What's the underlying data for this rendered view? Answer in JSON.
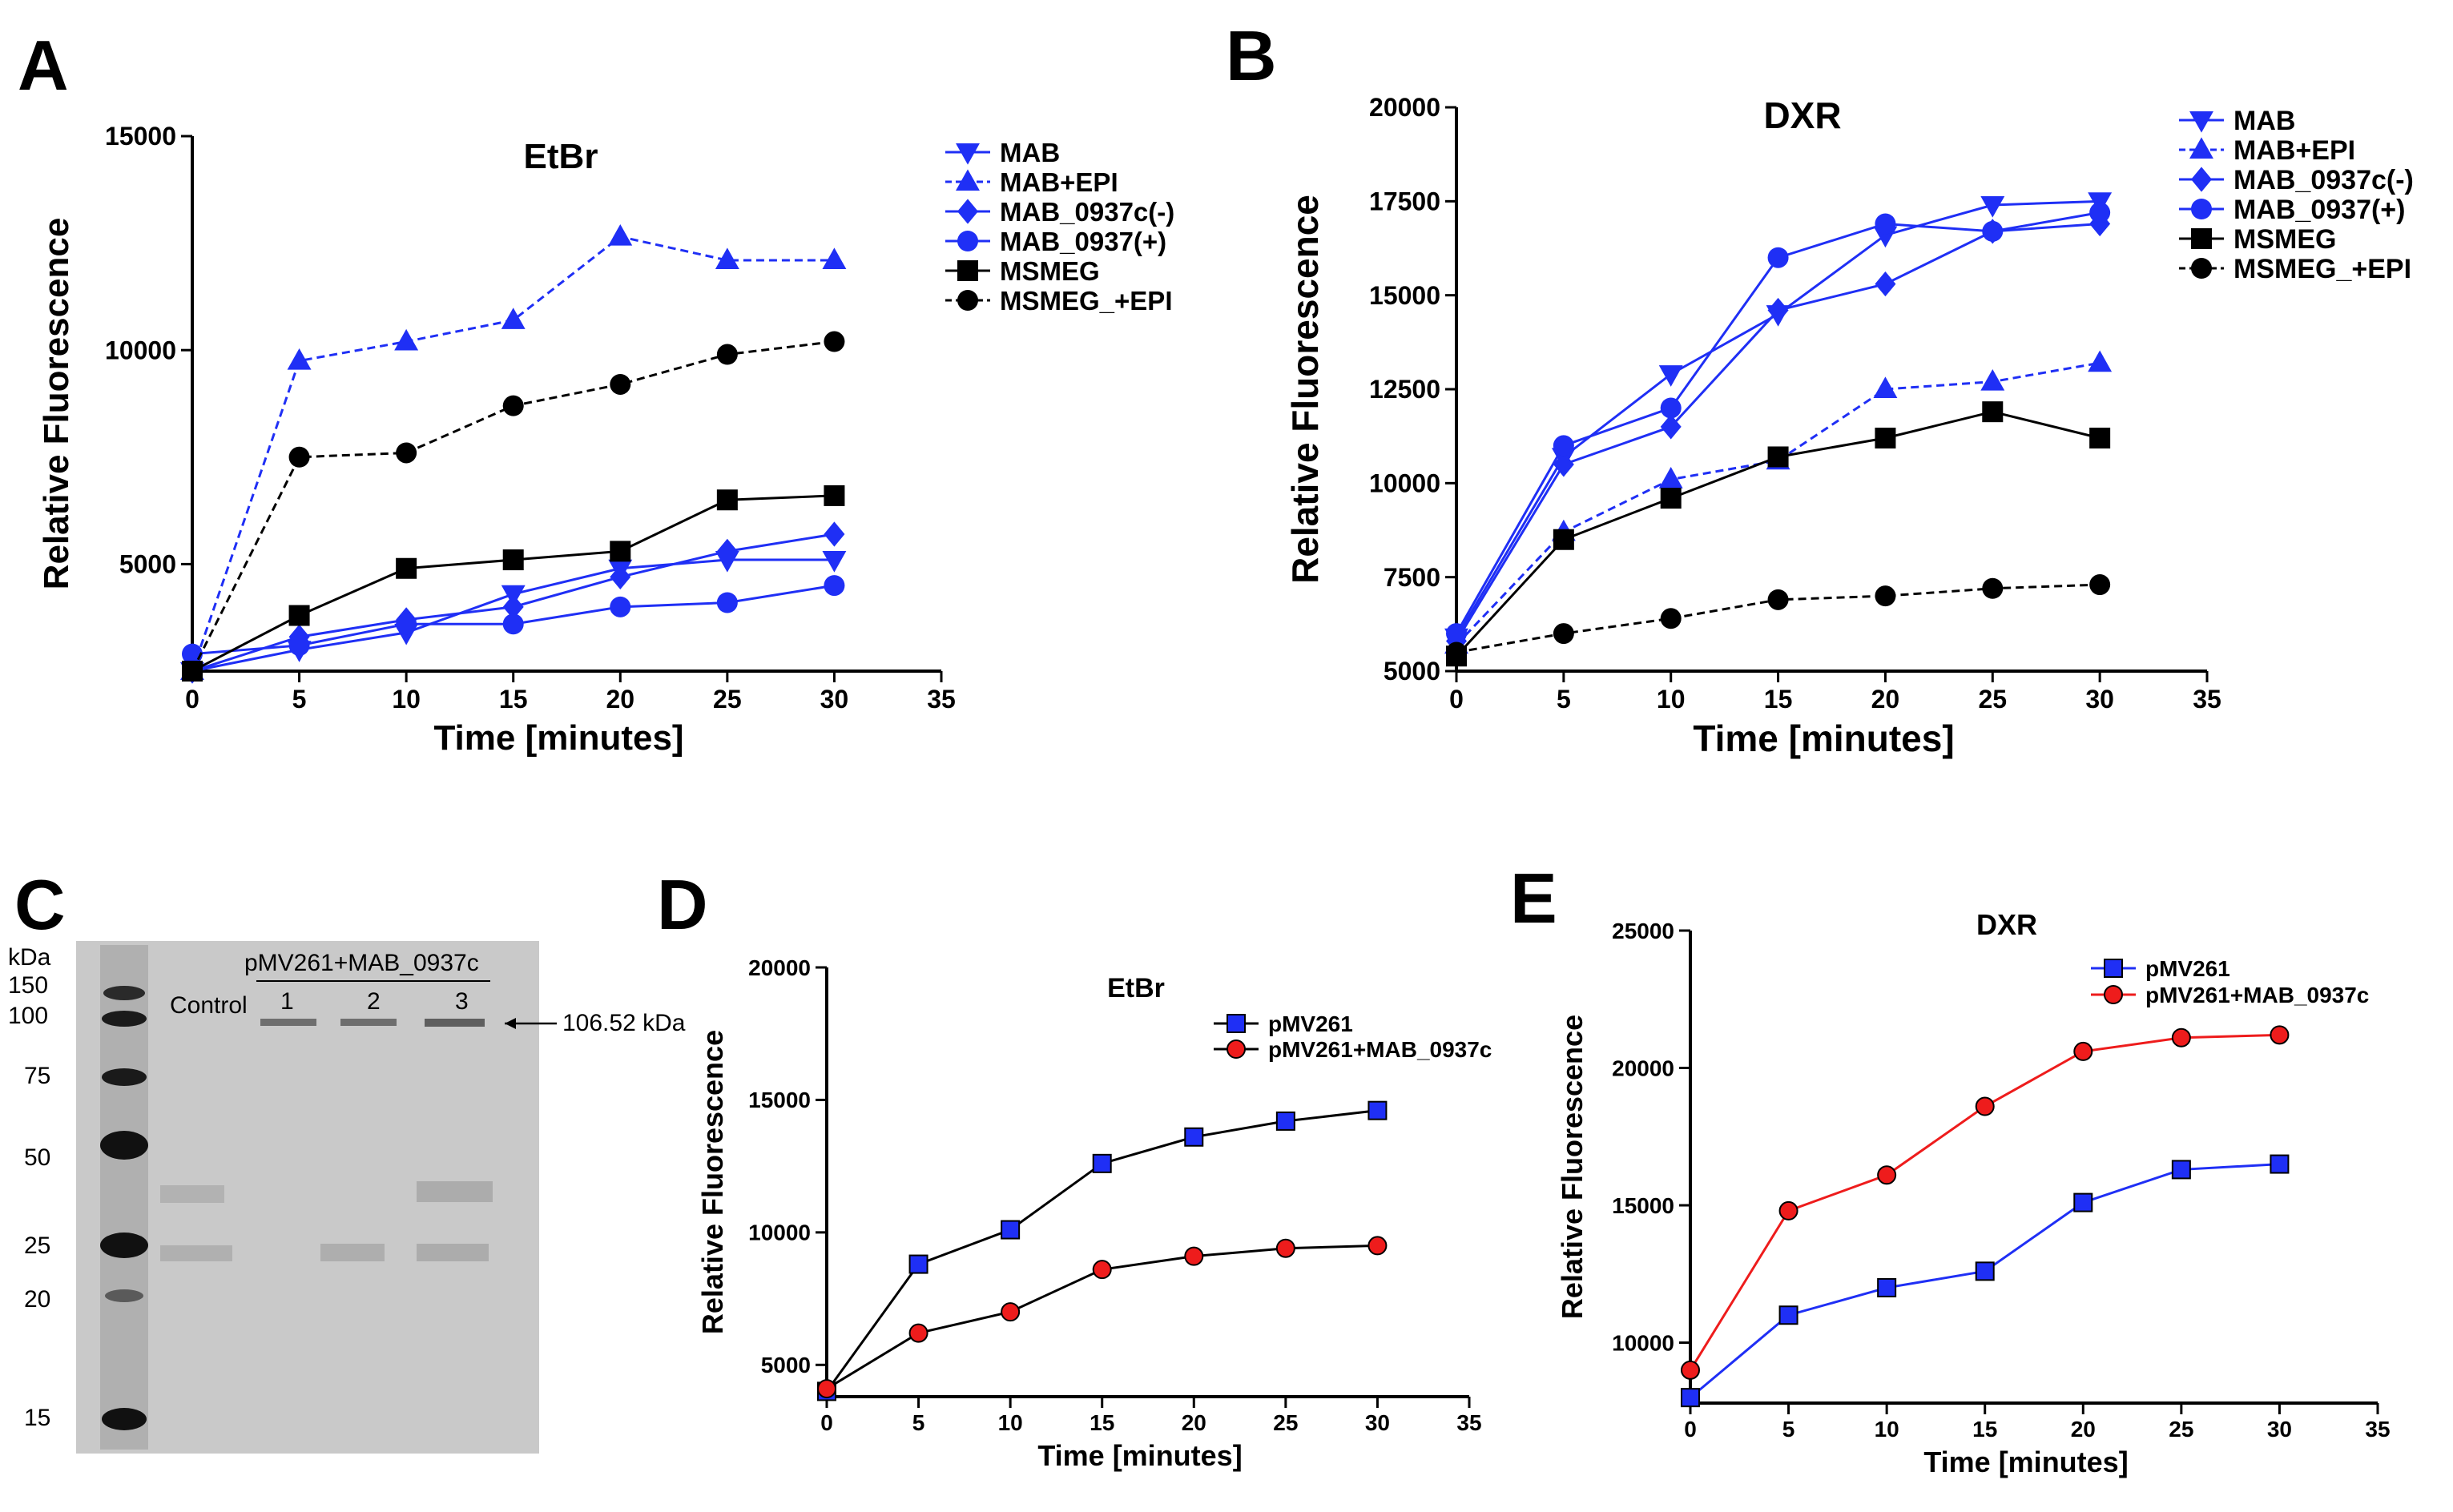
{
  "panel_labels": [
    "A",
    "B",
    "C",
    "D",
    "E"
  ],
  "blot": {
    "kda_label": "kDa",
    "ladder_markers": [
      "150",
      "100",
      "75",
      "50",
      "25",
      "20",
      "15"
    ],
    "construct_label": "pMV261+MAB_0937c",
    "lane_control": "Control",
    "lanes": [
      "1",
      "2",
      "3"
    ],
    "band_annotation": "106.52 kDa"
  },
  "chart_data": [
    {
      "type": "line",
      "panel": "A",
      "title": "EtBr",
      "xlabel": "Time [minutes]",
      "ylabel": "Relative Fluorescence",
      "xlim": [
        0,
        35
      ],
      "ylim": [
        2500,
        15000
      ],
      "xticks": [
        0,
        5,
        10,
        15,
        20,
        25,
        30,
        35
      ],
      "yticks": [
        5000,
        10000,
        15000
      ],
      "x": [
        0,
        5,
        10,
        15,
        20,
        25,
        30
      ],
      "legend_position": "top-right",
      "series": [
        {
          "name": "MAB",
          "marker": "triangle-down",
          "color": "#1f2ff5",
          "dashed": false,
          "values": [
            2500,
            3000,
            3400,
            4300,
            4900,
            5100,
            5100
          ]
        },
        {
          "name": "MAB+EPI",
          "marker": "triangle-up",
          "color": "#1f2ff5",
          "dashed": true,
          "values": [
            2500,
            9750,
            10200,
            10700,
            12650,
            12100,
            12100
          ]
        },
        {
          "name": "MAB_0937c(-)",
          "marker": "diamond",
          "color": "#1f2ff5",
          "dashed": false,
          "values": [
            2500,
            3300,
            3700,
            4000,
            4700,
            5300,
            5700
          ]
        },
        {
          "name": "MAB_0937(+)",
          "marker": "circle",
          "color": "#1f2ff5",
          "dashed": false,
          "values": [
            2900,
            3100,
            3600,
            3600,
            4000,
            4100,
            4500
          ]
        },
        {
          "name": "MSMEG",
          "marker": "square",
          "color": "#000000",
          "dashed": false,
          "values": [
            2500,
            3800,
            4900,
            5100,
            5300,
            6500,
            6600
          ]
        },
        {
          "name": "MSMEG_+EPI",
          "marker": "circle",
          "color": "#000000",
          "dashed": true,
          "values": [
            2500,
            7500,
            7600,
            8700,
            9200,
            9900,
            10200
          ]
        }
      ]
    },
    {
      "type": "line",
      "panel": "B",
      "title": "DXR",
      "xlabel": "Time [minutes]",
      "ylabel": "Relative Fluorescence",
      "xlim": [
        0,
        35
      ],
      "ylim": [
        5000,
        20000
      ],
      "xticks": [
        0,
        5,
        10,
        15,
        20,
        25,
        30,
        35
      ],
      "yticks": [
        5000,
        7500,
        10000,
        12500,
        15000,
        17500,
        20000
      ],
      "x": [
        0,
        5,
        10,
        15,
        20,
        25,
        30
      ],
      "legend_position": "top-right",
      "series": [
        {
          "name": "MAB",
          "marker": "triangle-down",
          "color": "#1f2ff5",
          "dashed": false,
          "values": [
            5900,
            10700,
            12900,
            14500,
            16600,
            17400,
            17500
          ]
        },
        {
          "name": "MAB+EPI",
          "marker": "triangle-up",
          "color": "#1f2ff5",
          "dashed": true,
          "values": [
            5700,
            8700,
            10100,
            10600,
            12500,
            12700,
            13200
          ]
        },
        {
          "name": "MAB_0937c(-)",
          "marker": "diamond",
          "color": "#1f2ff5",
          "dashed": false,
          "values": [
            5800,
            10500,
            11500,
            14600,
            15300,
            16700,
            16900
          ]
        },
        {
          "name": "MAB_0937(+)",
          "marker": "circle",
          "color": "#1f2ff5",
          "dashed": false,
          "values": [
            6000,
            11000,
            12000,
            16000,
            16900,
            16700,
            17200
          ]
        },
        {
          "name": "MSMEG",
          "marker": "square",
          "color": "#000000",
          "dashed": false,
          "values": [
            5400,
            8500,
            9600,
            10700,
            11200,
            11900,
            11200
          ]
        },
        {
          "name": "MSMEG_+EPI",
          "marker": "circle",
          "color": "#000000",
          "dashed": true,
          "values": [
            5500,
            6000,
            6400,
            6900,
            7000,
            7200,
            7300
          ]
        }
      ]
    },
    {
      "type": "line",
      "panel": "D",
      "title": "EtBr",
      "xlabel": "Time [minutes]",
      "ylabel": "Relative Fluorescence",
      "xlim": [
        0,
        35
      ],
      "ylim": [
        3800,
        20000
      ],
      "xticks": [
        0,
        5,
        10,
        15,
        20,
        25,
        30,
        35
      ],
      "yticks": [
        5000,
        10000,
        15000,
        20000
      ],
      "x": [
        0,
        5,
        10,
        15,
        20,
        25,
        30
      ],
      "legend_position": "center-right",
      "series": [
        {
          "name": "pMV261",
          "marker": "square",
          "color": "#1f2ff5",
          "line_color": "#000000",
          "dashed": false,
          "values": [
            4000,
            8800,
            10100,
            12600,
            13600,
            14200,
            14600
          ]
        },
        {
          "name": "pMV261+MAB_0937c",
          "marker": "circle",
          "color": "#ee1c1c",
          "line_color": "#000000",
          "dashed": false,
          "values": [
            4100,
            6200,
            7000,
            8600,
            9100,
            9400,
            9500
          ]
        }
      ]
    },
    {
      "type": "line",
      "panel": "E",
      "title": "DXR",
      "xlabel": "Time [minutes]",
      "ylabel": "Relative Fluorescence",
      "xlim": [
        0,
        35
      ],
      "ylim": [
        7800,
        25000
      ],
      "xticks": [
        0,
        5,
        10,
        15,
        20,
        25,
        30,
        35
      ],
      "yticks": [
        10000,
        15000,
        20000,
        25000
      ],
      "x": [
        0,
        5,
        10,
        15,
        20,
        25,
        30
      ],
      "legend_position": "top-left",
      "series": [
        {
          "name": "pMV261",
          "marker": "square",
          "color": "#1f2ff5",
          "line_color": "#1f2ff5",
          "dashed": false,
          "values": [
            8000,
            11000,
            12000,
            12600,
            15100,
            16300,
            16500
          ]
        },
        {
          "name": "pMV261+MAB_0937c",
          "marker": "circle",
          "color": "#ee1c1c",
          "line_color": "#ee1c1c",
          "dashed": false,
          "values": [
            9000,
            14800,
            16100,
            18600,
            20600,
            21100,
            21200
          ]
        }
      ]
    }
  ]
}
